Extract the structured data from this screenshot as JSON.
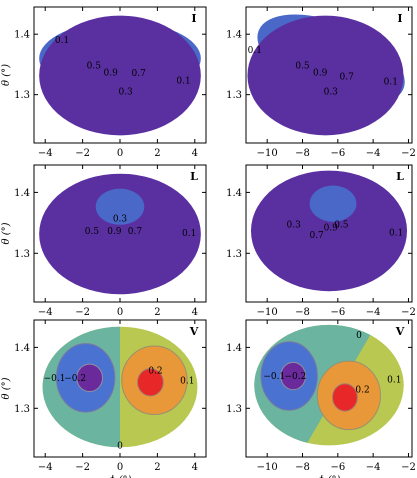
{
  "chart_data": [
    {
      "type": "contour",
      "panel": "I-left",
      "label": "I",
      "xlim": [
        -4.6,
        4.6
      ],
      "ylim": [
        1.22,
        1.445
      ],
      "xticks": [
        -4,
        -2,
        0,
        2,
        4
      ],
      "yticks": [
        1.3,
        1.4
      ],
      "ylabel": "θ (°)",
      "xlabel": "",
      "center": [
        0,
        1.335
      ],
      "angle_deg": 0,
      "contour_labels": [
        {
          "text": "0.1",
          "x": -3.1,
          "y": 1.39
        },
        {
          "text": "0.5",
          "x": -1.4,
          "y": 1.348
        },
        {
          "text": "0.9",
          "x": -0.5,
          "y": 1.337
        },
        {
          "text": "0.7",
          "x": 1.0,
          "y": 1.336
        },
        {
          "text": "0.3",
          "x": 0.3,
          "y": 1.305
        },
        {
          "text": "0.1",
          "x": 3.4,
          "y": 1.323
        }
      ]
    },
    {
      "type": "contour",
      "panel": "I-right",
      "label": "I",
      "xlim": [
        -11.2,
        -1.8
      ],
      "ylim": [
        1.22,
        1.445
      ],
      "xticks": [
        -10,
        -8,
        -6,
        -4,
        -2
      ],
      "yticks": [
        1.3,
        1.4
      ],
      "ylabel": "",
      "xlabel": "",
      "center": [
        -6.7,
        1.335
      ],
      "angle_deg": 22,
      "contour_labels": [
        {
          "text": "0.1",
          "x": -10.7,
          "y": 1.374
        },
        {
          "text": "0.5",
          "x": -8.0,
          "y": 1.348
        },
        {
          "text": "0.9",
          "x": -7.0,
          "y": 1.337
        },
        {
          "text": "0.7",
          "x": -5.5,
          "y": 1.33
        },
        {
          "text": "0.3",
          "x": -6.4,
          "y": 1.305
        },
        {
          "text": "0.1",
          "x": -3.0,
          "y": 1.322
        }
      ]
    },
    {
      "type": "contour",
      "panel": "L-left",
      "label": "L",
      "xlim": [
        -4.6,
        4.6
      ],
      "ylim": [
        1.22,
        1.445
      ],
      "xticks": [
        -4,
        -2,
        0,
        2,
        4
      ],
      "yticks": [
        1.3,
        1.4
      ],
      "ylabel": "θ (°)",
      "xlabel": "",
      "center": [
        0,
        1.335
      ],
      "angle_deg": 0,
      "contour_labels": [
        {
          "text": "0.3",
          "x": 0.0,
          "y": 1.357
        },
        {
          "text": "0.5",
          "x": -1.5,
          "y": 1.337
        },
        {
          "text": "0.9",
          "x": -0.3,
          "y": 1.337
        },
        {
          "text": "0.7",
          "x": 0.8,
          "y": 1.337
        },
        {
          "text": "0.1",
          "x": 3.7,
          "y": 1.333
        }
      ]
    },
    {
      "type": "contour",
      "panel": "L-right",
      "label": "L",
      "xlim": [
        -11.2,
        -1.8
      ],
      "ylim": [
        1.22,
        1.445
      ],
      "xticks": [
        -10,
        -8,
        -6,
        -4,
        -2
      ],
      "yticks": [
        1.3,
        1.4
      ],
      "ylabel": "",
      "xlabel": "",
      "center": [
        -6.5,
        1.34
      ],
      "angle_deg": 22,
      "contour_labels": [
        {
          "text": "0.3",
          "x": -8.5,
          "y": 1.347
        },
        {
          "text": "0.9",
          "x": -6.4,
          "y": 1.342
        },
        {
          "text": "0.5",
          "x": -5.8,
          "y": 1.347
        },
        {
          "text": "0.7",
          "x": -7.2,
          "y": 1.33
        },
        {
          "text": "0.1",
          "x": -2.7,
          "y": 1.334
        }
      ]
    },
    {
      "type": "contour",
      "panel": "V-left",
      "label": "V",
      "xlim": [
        -4.6,
        4.6
      ],
      "ylim": [
        1.22,
        1.445
      ],
      "xticks": [
        -4,
        -2,
        0,
        2,
        4
      ],
      "yticks": [
        1.3,
        1.4
      ],
      "ylabel": "θ (°)",
      "xlabel": "ϕ (°)",
      "center": [
        0,
        1.335
      ],
      "angle_deg": 0,
      "contour_labels": [
        {
          "text": "−0.1",
          "x": -3.5,
          "y": 1.35
        },
        {
          "text": "−0.2",
          "x": -2.4,
          "y": 1.35
        },
        {
          "text": "0.2",
          "x": 1.9,
          "y": 1.362
        },
        {
          "text": "0.1",
          "x": 3.6,
          "y": 1.346
        },
        {
          "text": "0",
          "x": 0.0,
          "y": 1.239
        }
      ]
    },
    {
      "type": "contour",
      "panel": "V-right",
      "label": "V",
      "xlim": [
        -11.2,
        -1.8
      ],
      "ylim": [
        1.22,
        1.445
      ],
      "xticks": [
        -10,
        -8,
        -6,
        -4,
        -2
      ],
      "yticks": [
        1.3,
        1.4
      ],
      "ylabel": "",
      "xlabel": "ϕ (°)",
      "center": [
        -6.5,
        1.338
      ],
      "angle_deg": 22,
      "contour_labels": [
        {
          "text": "0",
          "x": -4.8,
          "y": 1.42
        },
        {
          "text": "−0.1",
          "x": -9.6,
          "y": 1.353
        },
        {
          "text": "−0.2",
          "x": -8.4,
          "y": 1.353
        },
        {
          "text": "0.2",
          "x": -4.6,
          "y": 1.331
        },
        {
          "text": "0.1",
          "x": -2.8,
          "y": 1.347
        }
      ]
    }
  ],
  "colors": {
    "outer": "#5a30a0",
    "level1": "#4a68c8",
    "level2": "#58a0c8",
    "level3": "#9cc870",
    "level4": "#e8c838",
    "level5": "#e88030",
    "level6": "#e02828",
    "v_neg_strong": "#6a2a9c",
    "v_neg": "#4a72d0",
    "v_zero_left": "#6ab4a0",
    "v_zero_right": "#b8c850",
    "v_pos": "#e89838",
    "v_pos_strong": "#e82828"
  }
}
